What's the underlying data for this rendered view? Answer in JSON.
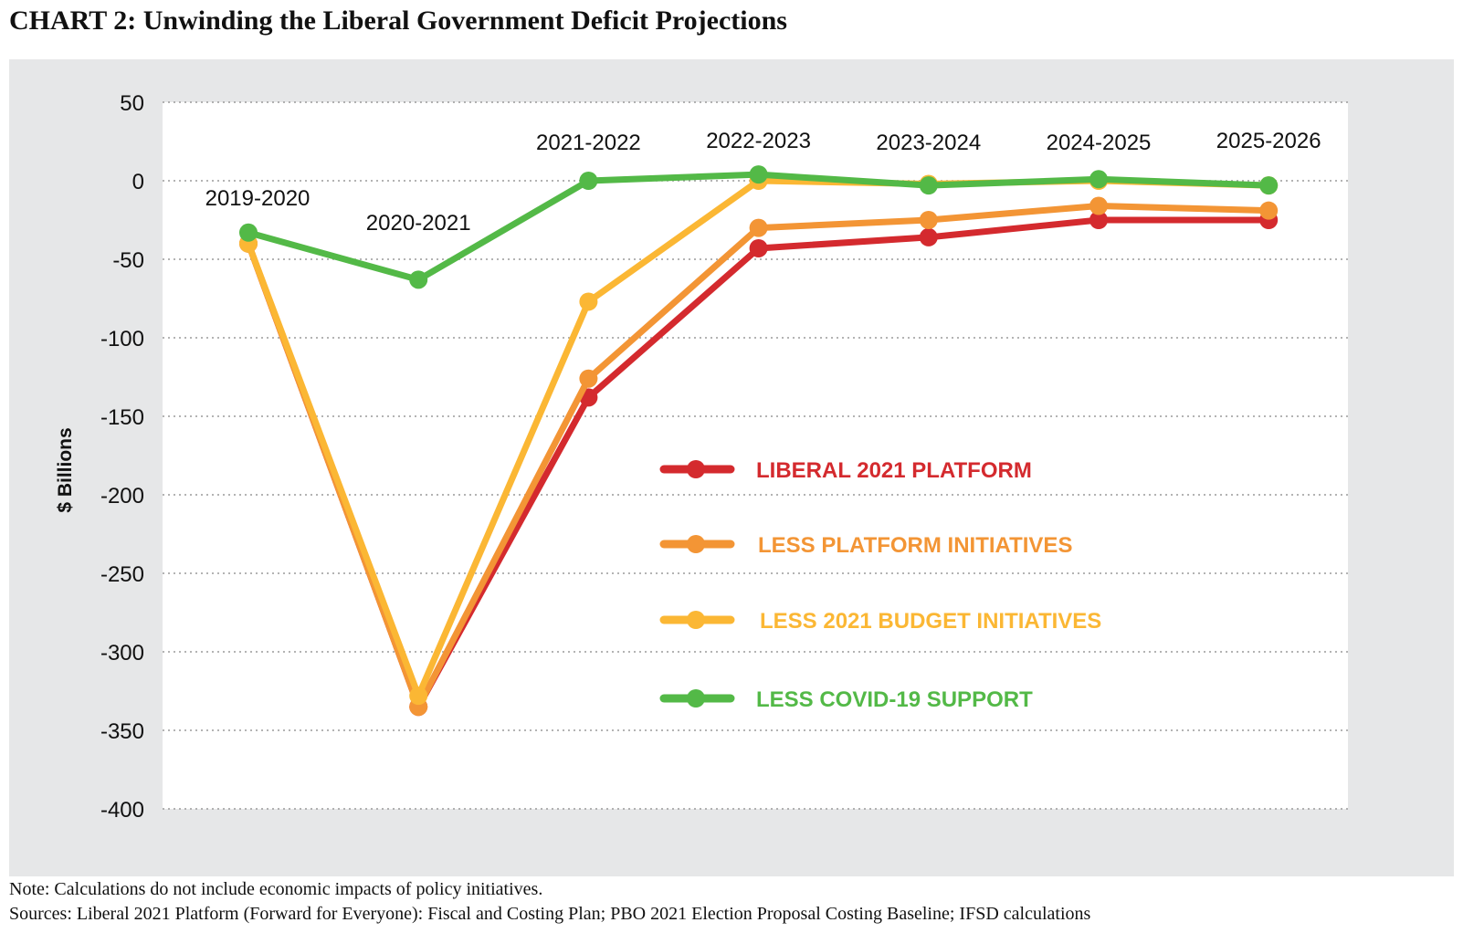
{
  "title": "CHART 2: Unwinding the Liberal Government Deficit Projections",
  "note": "Note: Calculations do not include economic impacts of policy initiatives.",
  "sources": "Sources: Liberal 2021 Platform (Forward for Everyone): Fiscal and Costing Plan; PBO 2021 Election Proposal Costing Baseline; IFSD calculations",
  "chart_data": {
    "type": "line",
    "title": "CHART 2: Unwinding the Liberal Government Deficit Projections",
    "xlabel": "",
    "ylabel": "$ Billions",
    "categories": [
      "2019-2020",
      "2020-2021",
      "2021-2022",
      "2022-2023",
      "2023-2024",
      "2024-2025",
      "2025-2026"
    ],
    "yticks": [
      50,
      0,
      -50,
      -100,
      -150,
      -200,
      -250,
      -300,
      -350,
      -400
    ],
    "ylim": [
      -400,
      50
    ],
    "grid": "horizontal dotted",
    "legend_position": "center-right",
    "series": [
      {
        "name": "LIBERAL 2021 PLATFORM",
        "color": "#d42a2e",
        "values": [
          -40,
          -335,
          -138,
          -43,
          -36,
          -25,
          -25
        ]
      },
      {
        "name": "LESS PLATFORM INITIATIVES",
        "color": "#f39535",
        "values": [
          -40,
          -335,
          -126,
          -30,
          -25,
          -16,
          -19
        ]
      },
      {
        "name": "LESS 2021 BUDGET INITIATIVES",
        "color": "#fbb734",
        "values": [
          -40,
          -328,
          -77,
          0,
          -2,
          0,
          -3
        ]
      },
      {
        "name": "LESS COVID-19 SUPPORT",
        "color": "#53b947",
        "values": [
          -33,
          -63,
          0,
          4,
          -3,
          1,
          -3
        ]
      }
    ]
  }
}
